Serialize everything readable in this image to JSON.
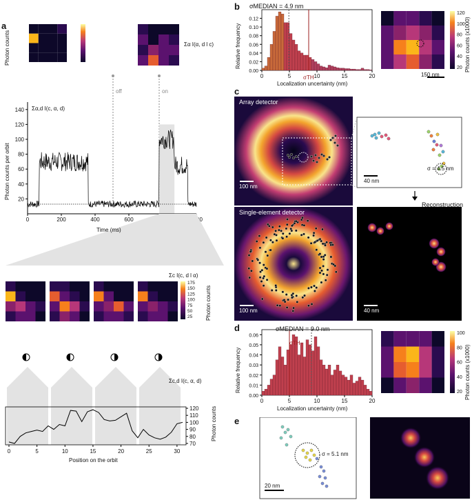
{
  "panels": {
    "a": "a",
    "b": "b",
    "c": "c",
    "d": "d",
    "e": "e"
  },
  "colors": {
    "inferno_low": "#0d0829",
    "inferno_mid": "#b73779",
    "inferno_high": "#fcffa4",
    "trace": "#000000",
    "threshold_line": "#9b1c1c",
    "hist_fill": "#c0404e"
  },
  "a": {
    "top_heatmap_ylabel": "Photon counts",
    "top_colorbar_ticks": [
      "",
      "",
      ""
    ],
    "sum_alpha_label": "Σα I(α, d l c)",
    "off_label": "off",
    "on_label": "on",
    "trace_label": "Σα,d I(c, α, d)",
    "xlabel": "Time (ms)",
    "ylabel": "Photon counts per orbit",
    "xticks": [
      "0",
      "200",
      "400",
      "600",
      "800",
      "1000"
    ],
    "yticks": [
      "20",
      "40",
      "60",
      "80",
      "100",
      "120",
      "140"
    ],
    "mid_label": "Σc I(c, d l α)",
    "mid_colorbar_ticks": [
      "175",
      "150",
      "125",
      "100",
      "75",
      "50",
      "25"
    ],
    "mid_colorbar_label": "Photon counts",
    "bottom_label": "Σc,d I(c, α, d)",
    "bottom_xlabel": "Position on the orbit",
    "bottom_ylabel": "Photon counts",
    "bottom_xticks": [
      "0",
      "5",
      "10",
      "15",
      "20",
      "25",
      "30"
    ],
    "bottom_yticks": [
      "120",
      "110",
      "100",
      "90",
      "80",
      "70"
    ]
  },
  "b": {
    "sigma_median": "σMEDIAN = 4.9 nm",
    "sigma_th": "σTH",
    "xlabel": "Localization uncertainty (nm)",
    "ylabel": "Relative frequency",
    "xticks": [
      "0",
      "5",
      "10",
      "15",
      "20"
    ],
    "yticks": [
      "0.12",
      "0.10",
      "0.08",
      "0.06",
      "0.04",
      "0.02",
      "0.00"
    ],
    "colorbar_ticks": [
      "120",
      "100",
      "80",
      "60",
      "40",
      "20"
    ],
    "colorbar_label": "Photon counts (x1000)",
    "scale": "150 nm"
  },
  "c": {
    "array_label": "Array detector",
    "single_label": "Single-element detector",
    "scale_100a": "100 nm",
    "scale_100b": "100 nm",
    "scale_40a": "40 nm",
    "scale_40b": "40 nm",
    "sigma": "σ = 4.5 nm",
    "reconstruction": "Reconstruction"
  },
  "d": {
    "sigma_median": "σMEDIAN = 9.0 nm",
    "sigma_th": "σTH",
    "xlabel": "Localization uncertainty (nm)",
    "ylabel": "Relative frequency",
    "xticks": [
      "0",
      "5",
      "10",
      "15",
      "20"
    ],
    "yticks": [
      "0.06",
      "0.05",
      "0.04",
      "0.03",
      "0.02",
      "0.01",
      "0.00"
    ],
    "colorbar_ticks": [
      "100",
      "80",
      "60",
      "40",
      "20"
    ],
    "colorbar_label": "Photon counts (x1000)"
  },
  "e": {
    "sigma": "σ = 5.1 nm",
    "scale": "20 nm"
  },
  "chart_data": [
    {
      "type": "line",
      "title": "",
      "xlabel": "Time (ms)",
      "ylabel": "Photon counts per orbit",
      "xlim": [
        0,
        1000
      ],
      "ylim": [
        0,
        150
      ],
      "segments": [
        {
          "from": 0,
          "to": 70,
          "level": 13
        },
        {
          "from": 70,
          "to": 360,
          "level": 70
        },
        {
          "from": 360,
          "to": 780,
          "level": 13
        },
        {
          "from": 780,
          "to": 870,
          "level": 100
        },
        {
          "from": 870,
          "to": 950,
          "level": 65
        },
        {
          "from": 950,
          "to": 1000,
          "level": 13
        }
      ]
    },
    {
      "type": "line",
      "xlabel": "Position on the orbit",
      "ylabel": "Photon counts",
      "ylim": [
        68,
        122
      ],
      "x": [
        0,
        1,
        2,
        3,
        4,
        5,
        6,
        7,
        8,
        9,
        10,
        11,
        12,
        13,
        14,
        15,
        16,
        17,
        18,
        19,
        20,
        21,
        22,
        23,
        24,
        25,
        26,
        27,
        28,
        29,
        30,
        31
      ],
      "values": [
        72,
        70,
        80,
        85,
        87,
        89,
        87,
        95,
        90,
        97,
        95,
        117,
        116,
        101,
        115,
        118,
        114,
        104,
        102,
        103,
        108,
        113,
        88,
        78,
        90,
        82,
        78,
        76,
        79,
        86,
        98,
        100
      ]
    },
    {
      "type": "bar",
      "xlabel": "Localization uncertainty (nm)",
      "ylabel": "Relative frequency",
      "xlim": [
        0,
        20
      ],
      "ylim": [
        0,
        0.14
      ],
      "bin_width": 0.5,
      "values": [
        0.005,
        0.01,
        0.03,
        0.06,
        0.09,
        0.125,
        0.135,
        0.13,
        0.11,
        0.11,
        0.085,
        0.07,
        0.06,
        0.045,
        0.04,
        0.035,
        0.035,
        0.03,
        0.025,
        0.02,
        0.015,
        0.01,
        0.008,
        0.006,
        0.012,
        0.01,
        0.008,
        0.006,
        0.005,
        0.005,
        0.004,
        0.004,
        0.003,
        0.003,
        0.002,
        0.002,
        0.005,
        0.002,
        0.002,
        0.001
      ]
    },
    {
      "type": "bar",
      "xlabel": "Localization uncertainty (nm)",
      "ylabel": "Relative frequency",
      "xlim": [
        0,
        20
      ],
      "ylim": [
        0,
        0.065
      ],
      "bin_width": 0.5,
      "values": [
        0.004,
        0.006,
        0.01,
        0.016,
        0.02,
        0.035,
        0.048,
        0.038,
        0.03,
        0.045,
        0.05,
        0.06,
        0.058,
        0.04,
        0.052,
        0.038,
        0.055,
        0.05,
        0.044,
        0.058,
        0.048,
        0.035,
        0.03,
        0.026,
        0.03,
        0.02,
        0.025,
        0.03,
        0.024,
        0.02,
        0.018,
        0.015,
        0.02,
        0.012,
        0.014,
        0.018,
        0.015,
        0.01,
        0.006,
        0.004
      ]
    }
  ]
}
